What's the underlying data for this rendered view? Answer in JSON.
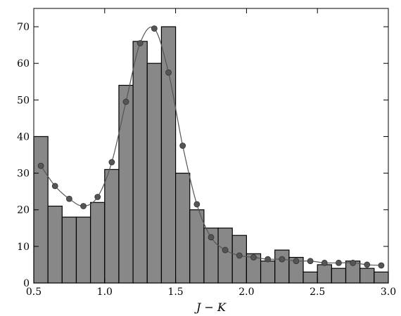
{
  "chart_data": {
    "type": "bar",
    "xlabel": "J − K",
    "ylabel": "",
    "xlim": [
      0.5,
      3.0
    ],
    "ylim": [
      0,
      75
    ],
    "bin_width": 0.1,
    "x_ticks": [
      0.5,
      1.0,
      1.5,
      2.0,
      2.5,
      3.0
    ],
    "x_tick_labels": [
      "0.5",
      "1.0",
      "1.5",
      "2.0",
      "2.5",
      "3.0"
    ],
    "y_ticks": [
      0,
      10,
      20,
      30,
      40,
      50,
      60,
      70
    ],
    "y_tick_labels": [
      "0",
      "10",
      "20",
      "30",
      "40",
      "50",
      "60",
      "70"
    ],
    "grid": false,
    "bar_color": "#888888",
    "series": [
      {
        "type": "bar",
        "bin_starts": [
          0.5,
          0.6,
          0.7,
          0.8,
          0.9,
          1.0,
          1.1,
          1.2,
          1.3,
          1.4,
          1.5,
          1.6,
          1.7,
          1.8,
          1.9,
          2.0,
          2.1,
          2.2,
          2.3,
          2.4,
          2.5,
          2.6,
          2.7,
          2.8,
          2.9
        ],
        "values": [
          40,
          21,
          18,
          18,
          22,
          31,
          54,
          66,
          60,
          70,
          30,
          20,
          15,
          15,
          13,
          8,
          6,
          9,
          7,
          3,
          5,
          4,
          6,
          4,
          3
        ]
      },
      {
        "type": "line",
        "color": "#555555",
        "x": [
          0.55,
          0.65,
          0.75,
          0.85,
          0.95,
          1.05,
          1.15,
          1.25,
          1.35,
          1.45,
          1.55,
          1.65,
          1.75,
          1.85,
          1.95,
          2.05,
          2.15,
          2.25,
          2.35,
          2.45,
          2.55,
          2.65,
          2.75,
          2.85,
          2.95
        ],
        "values": [
          32,
          26.5,
          23,
          21,
          23.5,
          33,
          49.5,
          65.5,
          69.5,
          57.5,
          37.5,
          21.5,
          12.5,
          9,
          7.5,
          7,
          6.5,
          6.5,
          6,
          6,
          5.5,
          5.5,
          5.5,
          5,
          4.8
        ]
      }
    ]
  }
}
